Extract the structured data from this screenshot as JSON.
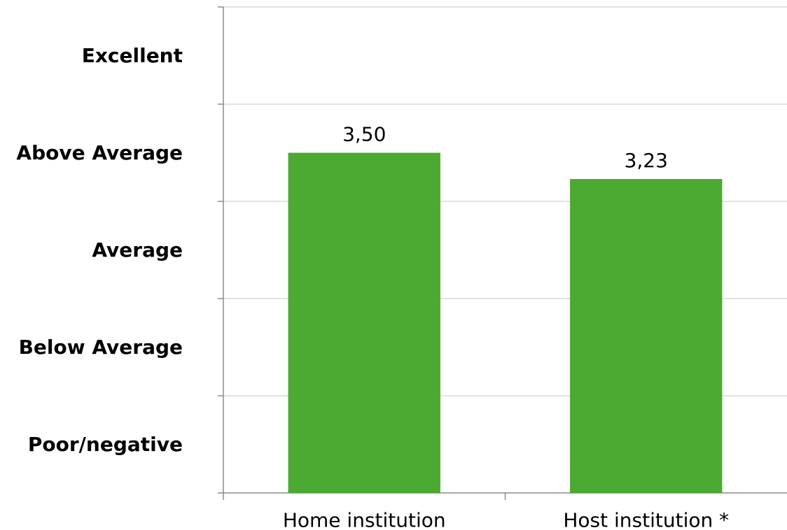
{
  "chart_data": {
    "type": "bar",
    "categories": [
      "Home institution",
      "Host institution *"
    ],
    "values": [
      3.5,
      3.23
    ],
    "value_labels": [
      "3,50",
      "3,23"
    ],
    "y_category_labels": [
      "Poor/negative",
      "Below Average",
      "Average",
      "Above Average",
      "Excellent"
    ],
    "ylim": [
      0,
      5
    ],
    "title": "",
    "xlabel": "",
    "ylabel": "",
    "grid": true,
    "legend": "none",
    "colors": {
      "bar": "#4ca931",
      "grid": "#d9d9d9",
      "axis": "#8c8c8c"
    }
  }
}
